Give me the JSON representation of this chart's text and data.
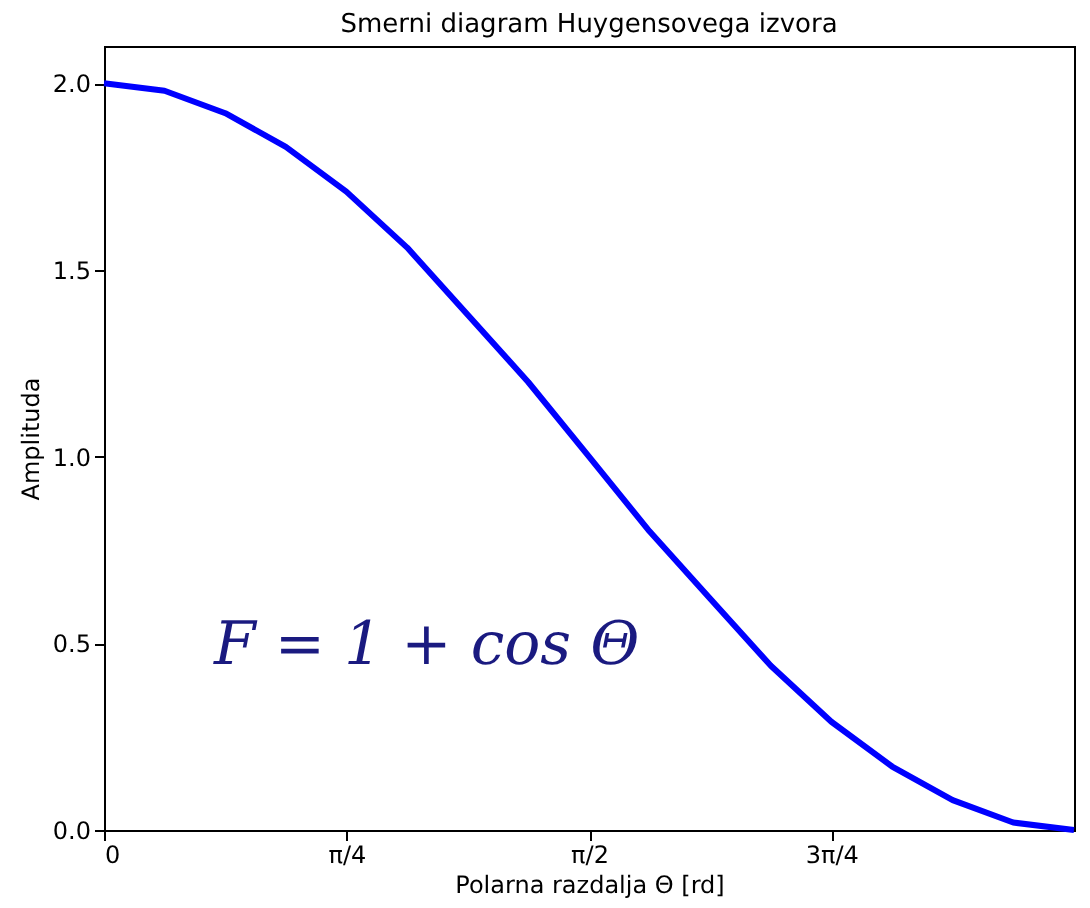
{
  "chart_data": {
    "type": "line",
    "title": "Smerni diagram Huygensovega izvora",
    "xlabel": "Polarna razdalja Θ [rd]",
    "ylabel": "Amplituda",
    "x": [
      0,
      0.196,
      0.393,
      0.589,
      0.785,
      0.982,
      1.178,
      1.374,
      1.571,
      1.767,
      1.963,
      2.16,
      2.356,
      2.553,
      2.749,
      2.945,
      3.142
    ],
    "series": [
      {
        "color": "#0000ff",
        "values": [
          2.0,
          1.98,
          1.92,
          1.83,
          1.71,
          1.56,
          1.38,
          1.2,
          1.0,
          0.8,
          0.62,
          0.44,
          0.29,
          0.17,
          0.08,
          0.02,
          0.0
        ]
      }
    ],
    "xlim": [
      0,
      3.142
    ],
    "ylim": [
      0,
      2.1
    ],
    "xticks": [
      {
        "value": 0,
        "label": "0"
      },
      {
        "value": 0.785,
        "label": "π/4"
      },
      {
        "value": 1.571,
        "label": "π/2"
      },
      {
        "value": 2.356,
        "label": "3π/4"
      }
    ],
    "yticks": [
      {
        "value": 0,
        "label": "0.0"
      },
      {
        "value": 0.5,
        "label": "0.5"
      },
      {
        "value": 1.0,
        "label": "1.0"
      },
      {
        "value": 1.5,
        "label": "1.5"
      },
      {
        "value": 2.0,
        "label": "2.0"
      }
    ],
    "annotations": [
      "F = 1 + cos Θ"
    ],
    "grid": false,
    "legend": false,
    "marker": "none",
    "line_style": "solid"
  }
}
